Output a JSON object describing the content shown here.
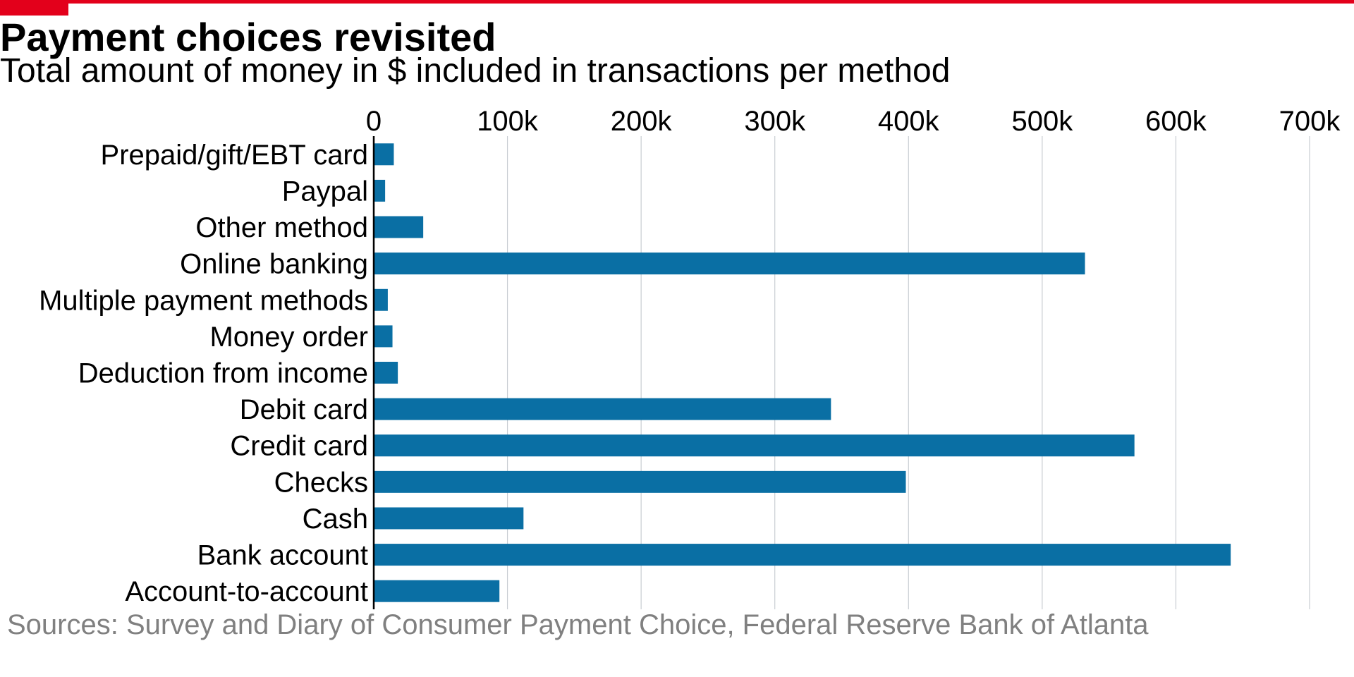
{
  "colors": {
    "accent": "#e3001b",
    "bar": "#0a6fa4",
    "grid": "#c8cdd2",
    "text": "#000000",
    "source": "#808080"
  },
  "header": {
    "title": "Payment choices revisited",
    "subtitle": "Total amount of money in $ included in transactions per method"
  },
  "footer": {
    "source": "Sources: Survey and Diary of Consumer Payment Choice, Federal Reserve Bank of Atlanta"
  },
  "chart_data": {
    "type": "bar",
    "orientation": "horizontal",
    "title": "Payment choices revisited",
    "subtitle": "Total amount of money in $ included in transactions per method",
    "xlabel": "",
    "ylabel": "",
    "xlim": [
      0,
      720000
    ],
    "x_ticks": [
      0,
      100000,
      200000,
      300000,
      400000,
      500000,
      600000,
      700000
    ],
    "x_tick_labels": [
      "0",
      "100k",
      "200k",
      "300k",
      "400k",
      "500k",
      "600k",
      "700k"
    ],
    "x_axis_position": "top",
    "grid": true,
    "legend": "none",
    "categories": [
      "Prepaid/gift/EBT card",
      "Paypal",
      "Other method",
      "Online banking",
      "Multiple payment methods",
      "Money order",
      "Deduction from income",
      "Debit card",
      "Credit card",
      "Checks",
      "Cash",
      "Bank account",
      "Account-to-account"
    ],
    "values": [
      15000,
      8500,
      37000,
      532000,
      10500,
      14000,
      18000,
      342000,
      569000,
      398000,
      112000,
      641000,
      94000
    ]
  }
}
